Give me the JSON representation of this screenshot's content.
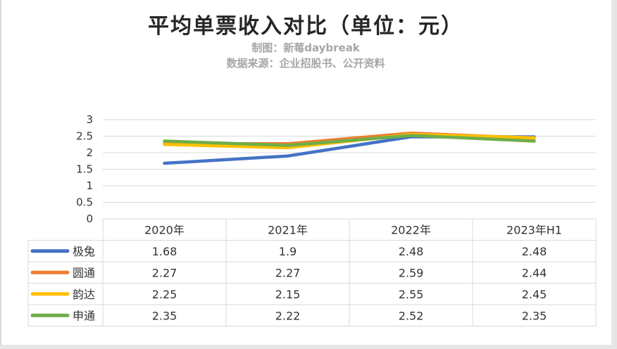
{
  "header": {
    "title": "平均单票收入对比（单位：元）",
    "credit": "制图：新莓daybreak",
    "source": "数据来源：企业招股书、公开资料"
  },
  "chart_data": {
    "type": "line",
    "categories": [
      "2020年",
      "2021年",
      "2022年",
      "2023年H1"
    ],
    "series": [
      {
        "name": "极兔",
        "color": "#4472C4",
        "values": [
          1.68,
          1.9,
          2.48,
          2.48
        ]
      },
      {
        "name": "圆通",
        "color": "#ED7D31",
        "values": [
          2.27,
          2.27,
          2.59,
          2.44
        ]
      },
      {
        "name": "韵达",
        "color": "#FFC000",
        "values": [
          2.25,
          2.15,
          2.55,
          2.45
        ]
      },
      {
        "name": "申通",
        "color": "#70AD47",
        "values": [
          2.35,
          2.22,
          2.52,
          2.35
        ]
      }
    ],
    "value_labels": [
      [
        "1.68",
        "1.9",
        "2.48",
        "2.48"
      ],
      [
        "2.27",
        "2.27",
        "2.59",
        "2.44"
      ],
      [
        "2.25",
        "2.15",
        "2.55",
        "2.45"
      ],
      [
        "2.35",
        "2.22",
        "2.52",
        "2.35"
      ]
    ],
    "yticks": [
      "0",
      "0.5",
      "1",
      "1.5",
      "2",
      "2.5",
      "3"
    ],
    "ylim": [
      0,
      3
    ],
    "grid": true,
    "legend": "data-table"
  }
}
